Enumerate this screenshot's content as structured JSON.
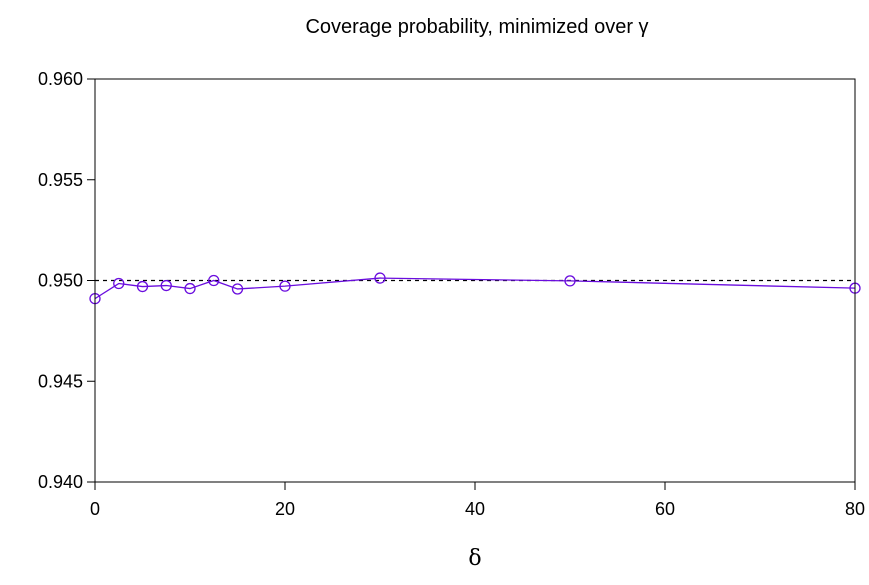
{
  "chart_data": {
    "type": "line",
    "title": "Coverage probability, minimized over γ",
    "xlabel": "δ",
    "ylabel": "",
    "xlim": [
      0,
      80
    ],
    "ylim": [
      0.94,
      0.96
    ],
    "xticks": [
      0,
      20,
      40,
      60,
      80
    ],
    "xtick_labels": [
      "0",
      "20",
      "40",
      "60",
      "80"
    ],
    "yticks": [
      0.94,
      0.945,
      0.95,
      0.955,
      0.96
    ],
    "ytick_labels": [
      "0.940",
      "0.945",
      "0.950",
      "0.955",
      "0.960"
    ],
    "grid": false,
    "reference_line": {
      "y": 0.95,
      "style": "dashed",
      "color": "#000000"
    },
    "series": [
      {
        "color": "#6a0dde",
        "marker": "open-circle",
        "x": [
          0,
          2.5,
          5,
          7.5,
          10,
          12.5,
          15,
          20,
          30,
          50,
          80
        ],
        "y": [
          0.9491,
          0.94985,
          0.9497,
          0.94975,
          0.9496,
          0.95,
          0.94958,
          0.94972,
          0.95012,
          0.94998,
          0.94962
        ]
      }
    ]
  }
}
